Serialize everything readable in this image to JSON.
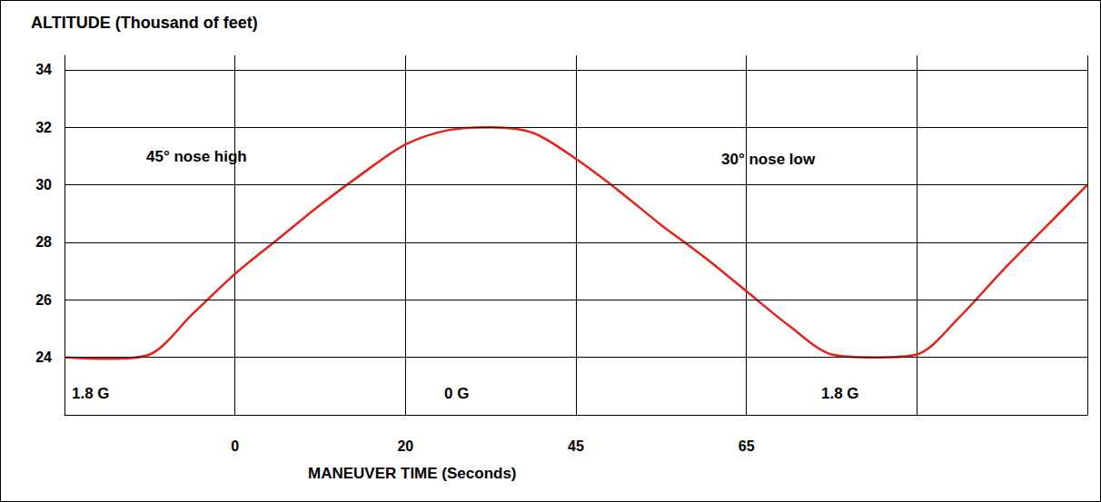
{
  "chart_data": {
    "type": "line",
    "title": "ALTITUDE (Thousand of feet)",
    "x_label": "MANEUVER TIME (Seconds)",
    "categories": [
      null,
      null,
      null,
      null,
      "0",
      null,
      null,
      null,
      "20",
      null,
      null,
      null,
      "45",
      null,
      null,
      null,
      "65",
      null,
      null,
      null,
      null,
      null,
      null,
      null,
      null
    ],
    "values": [
      24.0,
      23.95,
      24.1,
      25.5,
      26.9,
      28.1,
      29.3,
      30.4,
      31.4,
      31.9,
      32.0,
      31.8,
      30.9,
      29.8,
      28.6,
      27.5,
      26.3,
      25.1,
      24.1,
      24.0,
      24.1,
      25.4,
      27.0,
      28.5,
      30.0
    ],
    "color": "#e8201a",
    "ylim": [
      22,
      34.5
    ],
    "yticks": [
      24,
      26,
      28,
      30,
      32,
      34
    ],
    "grid": true,
    "annotations": [
      "45° nose high",
      "30° nose low",
      "1.8 G",
      "0 G",
      "1.8 G"
    ]
  }
}
